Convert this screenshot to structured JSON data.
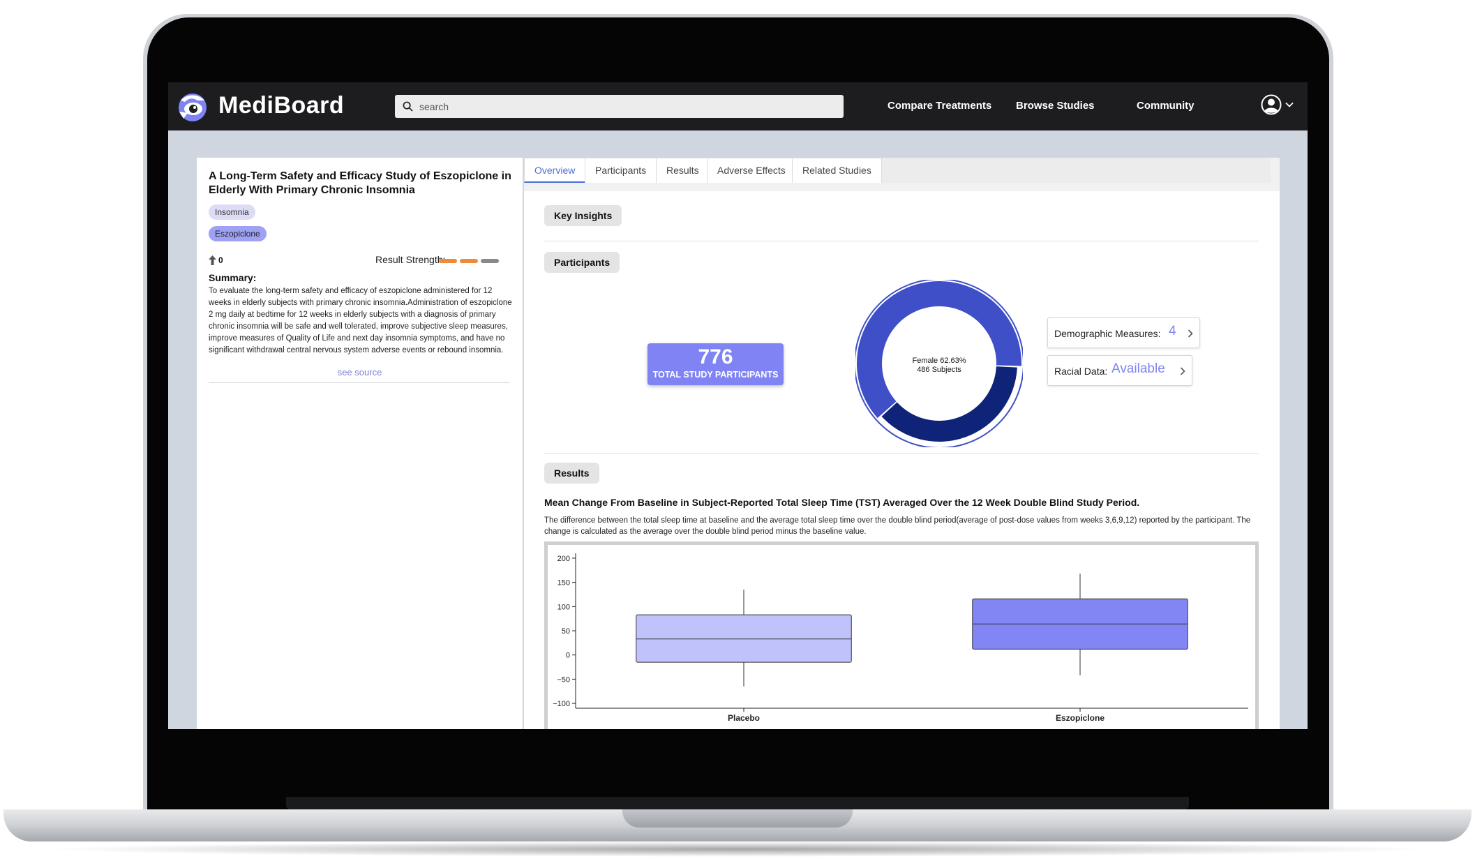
{
  "navbar": {
    "brand": "MediBoard",
    "search_placeholder": "search",
    "links": [
      "Compare Treatments",
      "Browse Studies",
      "Community"
    ]
  },
  "study": {
    "title": "A Long-Term Safety and Efficacy Study of Eszopiclone in Elderly With Primary Chronic Insomnia",
    "tags": [
      "Insomnia",
      "Eszopiclone"
    ],
    "upvotes": "0",
    "result_strength_label": "Result Strength:",
    "result_strength": {
      "filled": 2,
      "total": 3
    },
    "summary_heading": "Summary:",
    "summary_text": "To evaluate the long-term safety and efficacy of eszopiclone administered for 12 weeks in elderly subjects with primary chronic insomnia.Administration of eszopiclone 2 mg daily at bedtime for 12 weeks in elderly subjects with a diagnosis of primary chronic insomnia will be safe and well tolerated, improve subjective sleep measures, improve measures of Quality of Life and next day insomnia symptoms, and have no significant withdrawal central nervous system adverse events or rebound insomnia.",
    "see_source": "see source"
  },
  "tabs": [
    "Overview",
    "Participants",
    "Results",
    "Adverse Effects",
    "Related Studies"
  ],
  "active_tab": "Overview",
  "sections": {
    "key_insights": "Key Insights",
    "participants": "Participants",
    "results": "Results"
  },
  "participants": {
    "total": "776",
    "total_label": "TOTAL STUDY PARTICIPANTS",
    "donut_line1": "Female 62.63%",
    "donut_line2": "486 Subjects",
    "female_fraction": 0.6263,
    "demographic_label": "Demographic Measures:",
    "demographic_value": "4",
    "racial_label": "Racial Data:",
    "racial_value": "Available"
  },
  "results": {
    "title": "Mean Change From Baseline in Subject-Reported Total Sleep Time (TST) Averaged Over the 12 Week Double Blind Study Period.",
    "description": "The difference between the total sleep time at baseline and the average total sleep time over the double blind period(average of post-dose values from weeks 3,6,9,12) reported by the participant. The change is calculated as the average over the double blind period minus the baseline value."
  },
  "colors": {
    "accent": "#7f83f3",
    "donut_female": "#3f4fc8",
    "donut_male": "#0f2478",
    "strength_filled": "#ee8a3a",
    "strength_empty": "#888888",
    "box_placebo": "#c0c2fb",
    "box_eszopiclone": "#8286f5"
  },
  "chart_data": {
    "type": "box",
    "categories": [
      "Placebo",
      "Eszopiclone"
    ],
    "ylim": [
      -110,
      210
    ],
    "yticks": [
      200,
      150,
      100,
      50,
      0,
      -50,
      -100
    ],
    "boxes": [
      {
        "name": "Placebo",
        "whisker_low": -65,
        "q1": -15,
        "median": 33,
        "q3": 83,
        "whisker_high": 135
      },
      {
        "name": "Eszopiclone",
        "whisker_low": -42,
        "q1": 12,
        "median": 64,
        "q3": 116,
        "whisker_high": 168
      }
    ]
  }
}
